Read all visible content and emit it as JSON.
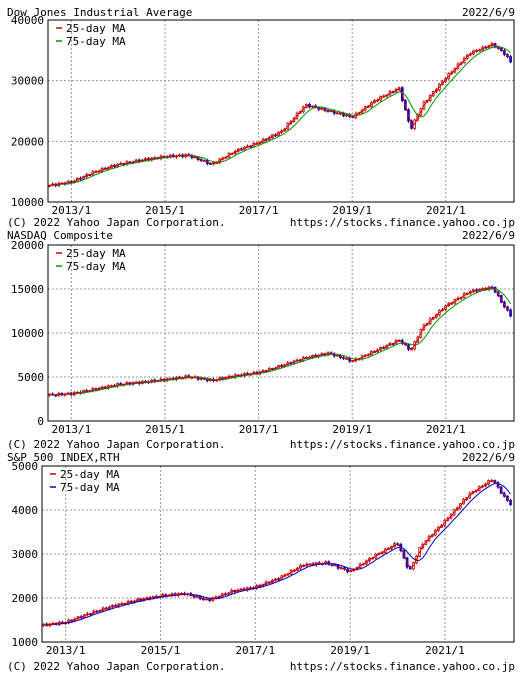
{
  "charts": [
    {
      "title": "Dow Jones Industrial Average",
      "date": "2022/6/9",
      "credit": "(C) 2022 Yahoo Japan Corporation.",
      "url": "https://stocks.finance.yahoo.co.jp"
    },
    {
      "title": "NASDAQ Composite",
      "date": "2022/6/9",
      "credit": "(C) 2022 Yahoo Japan Corporation.",
      "url": "https://stocks.finance.yahoo.co.jp"
    },
    {
      "title": "S&P 500 INDEX,RTH",
      "date": "2022/6/9",
      "credit": "(C) 2022 Yahoo Japan Corporation.",
      "url": "https://stocks.finance.yahoo.co.jp"
    }
  ],
  "colors": {
    "up": "#cc0000",
    "down": "#0000cc",
    "ma25": "#cc0000",
    "ma75": "#009900",
    "grid": "#999999",
    "frame": "#000000"
  },
  "chart_data": [
    {
      "type": "line",
      "title": "Dow Jones Industrial Average",
      "xlabel": "",
      "ylabel": "",
      "x_ticks": [
        "2013/1",
        "2015/1",
        "2017/1",
        "2019/1",
        "2021/1"
      ],
      "y_ticks": [
        10000,
        20000,
        30000,
        40000
      ],
      "ylim": [
        10000,
        40000
      ],
      "grid": true,
      "legend_position": "top-left",
      "series": [
        {
          "name": "25-day MA",
          "color": "#cc0000"
        },
        {
          "name": "75-day MA",
          "color": "#009900"
        }
      ],
      "x": [
        "2012/7",
        "2013/1",
        "2013/7",
        "2014/1",
        "2014/7",
        "2015/1",
        "2015/7",
        "2016/1",
        "2016/7",
        "2017/1",
        "2017/7",
        "2018/1",
        "2018/7",
        "2019/1",
        "2019/7",
        "2020/1",
        "2020/4",
        "2020/7",
        "2021/1",
        "2021/7",
        "2022/1",
        "2022/4",
        "2022/6"
      ],
      "values": [
        12700,
        13300,
        15000,
        16200,
        16900,
        17500,
        17700,
        16200,
        18400,
        19800,
        21700,
        26000,
        25000,
        24000,
        26800,
        28800,
        22000,
        26000,
        30500,
        34500,
        36000,
        34500,
        32800
      ]
    },
    {
      "type": "line",
      "title": "NASDAQ Composite",
      "xlabel": "",
      "ylabel": "",
      "x_ticks": [
        "2013/1",
        "2015/1",
        "2017/1",
        "2019/1",
        "2021/1"
      ],
      "y_ticks": [
        0,
        5000,
        10000,
        15000,
        20000
      ],
      "ylim": [
        0,
        20000
      ],
      "grid": true,
      "legend_position": "top-left",
      "series": [
        {
          "name": "25-day MA",
          "color": "#cc0000"
        },
        {
          "name": "75-day MA",
          "color": "#009900"
        }
      ],
      "x": [
        "2012/7",
        "2013/1",
        "2013/7",
        "2014/1",
        "2014/7",
        "2015/1",
        "2015/7",
        "2016/1",
        "2016/7",
        "2017/1",
        "2017/7",
        "2018/1",
        "2018/7",
        "2019/1",
        "2019/7",
        "2020/1",
        "2020/4",
        "2020/7",
        "2021/1",
        "2021/7",
        "2022/1",
        "2022/4",
        "2022/6"
      ],
      "values": [
        2950,
        3100,
        3600,
        4150,
        4400,
        4700,
        5050,
        4600,
        5150,
        5500,
        6300,
        7200,
        7700,
        6800,
        8000,
        9200,
        8000,
        10700,
        13100,
        14700,
        15200,
        13000,
        11800
      ]
    },
    {
      "type": "line",
      "title": "S&P 500 INDEX,RTH",
      "xlabel": "",
      "ylabel": "",
      "x_ticks": [
        "2013/1",
        "2015/1",
        "2017/1",
        "2019/1",
        "2021/1"
      ],
      "y_ticks": [
        1000,
        2000,
        3000,
        4000,
        5000
      ],
      "ylim": [
        1000,
        5000
      ],
      "grid": true,
      "legend_position": "top-left",
      "series": [
        {
          "name": "25-day MA",
          "color": "#cc0000"
        },
        {
          "name": "75-day MA",
          "color": "#0000cc"
        }
      ],
      "x": [
        "2012/7",
        "2013/1",
        "2013/7",
        "2014/1",
        "2014/7",
        "2015/1",
        "2015/7",
        "2016/1",
        "2016/7",
        "2017/1",
        "2017/7",
        "2018/1",
        "2018/7",
        "2019/1",
        "2019/7",
        "2020/1",
        "2020/4",
        "2020/7",
        "2021/1",
        "2021/7",
        "2022/1",
        "2022/4",
        "2022/6"
      ],
      "values": [
        1380,
        1450,
        1650,
        1820,
        1950,
        2050,
        2100,
        1950,
        2150,
        2250,
        2450,
        2750,
        2800,
        2600,
        2950,
        3250,
        2600,
        3200,
        3750,
        4350,
        4700,
        4300,
        4100
      ]
    }
  ]
}
